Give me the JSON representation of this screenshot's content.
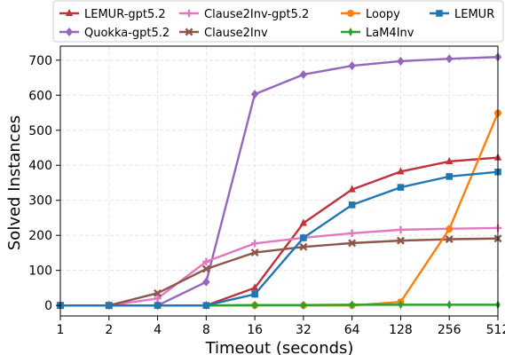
{
  "chart_data": {
    "type": "line",
    "xlabel": "Timeout (seconds)",
    "ylabel": "Solved Instances",
    "x": [
      1,
      2,
      4,
      8,
      16,
      32,
      64,
      128,
      256,
      512
    ],
    "x_scale": "log2",
    "xlim": [
      1,
      512
    ],
    "ylim": [
      -30,
      740
    ],
    "y_ticks": [
      0,
      100,
      200,
      300,
      400,
      500,
      600,
      700
    ],
    "grid": true,
    "legend_placement": "top, outside plot",
    "series": [
      {
        "name": "LEMUR-gpt5.2",
        "color": "#c0323c",
        "marker": "triangle",
        "values": [
          0,
          0,
          0,
          0,
          50,
          235,
          331,
          382,
          411,
          422
        ]
      },
      {
        "name": "Quokka-gpt5.2",
        "color": "#9467bd",
        "marker": "diamond",
        "values": [
          0,
          0,
          0,
          67,
          603,
          659,
          684,
          697,
          704,
          709
        ]
      },
      {
        "name": "Clause2Inv-gpt5.2",
        "color": "#e377c2",
        "marker": "plus",
        "values": [
          0,
          0,
          20,
          125,
          177,
          193,
          206,
          216,
          219,
          221
        ]
      },
      {
        "name": "Clause2Inv",
        "color": "#8c564b",
        "marker": "x",
        "values": [
          0,
          0,
          35,
          104,
          151,
          167,
          178,
          185,
          189,
          191
        ]
      },
      {
        "name": "Loopy",
        "color": "#ff7f0e",
        "marker": "circle",
        "values": [
          0,
          0,
          0,
          0,
          0,
          0,
          0,
          10,
          218,
          549
        ]
      },
      {
        "name": "LaM4Inv",
        "color": "#2ca02c",
        "marker": "diamond-thin",
        "values": [
          0,
          0,
          0,
          0,
          1,
          1,
          2,
          2,
          2,
          2
        ]
      },
      {
        "name": "LEMUR",
        "color": "#1f77b4",
        "marker": "square",
        "values": [
          0,
          0,
          0,
          0,
          32,
          193,
          287,
          337,
          368,
          381
        ]
      }
    ]
  }
}
